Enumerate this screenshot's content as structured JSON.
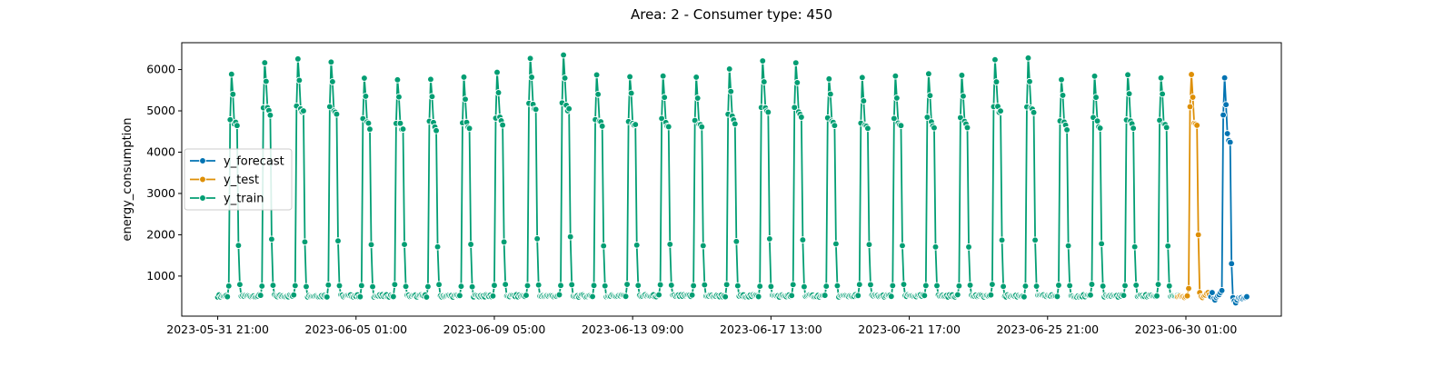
{
  "chart_data": {
    "type": "line",
    "title": "Area: 2 - Consumer type: 450",
    "xlabel": "",
    "ylabel": "energy_consumption",
    "x_tick_labels": [
      "2023-05-31 21:00",
      "2023-06-05 01:00",
      "2023-06-09 05:00",
      "2023-06-13 09:00",
      "2023-06-17 13:00",
      "2023-06-21 17:00",
      "2023-06-25 21:00",
      "2023-06-30 01:00"
    ],
    "y_ticks": [
      1000,
      2000,
      3000,
      4000,
      5000,
      6000
    ],
    "ylim": [
      30,
      6650
    ],
    "grid": false,
    "legend_position": "center-left",
    "series": [
      {
        "name": "y_forecast",
        "color": "#0173b2",
        "values_note": "hourly values 2023-06-30 19:00 to 2023-07-01 21:00",
        "start": "2023-06-30 19:00",
        "values": [
          500,
          600,
          450,
          420,
          480,
          520,
          550,
          600,
          650,
          4900,
          5800,
          5150,
          4450,
          4280,
          4240,
          1300,
          480,
          400,
          350,
          420,
          470,
          460,
          480,
          450,
          470,
          480,
          500
        ]
      },
      {
        "name": "y_test",
        "color": "#de8f05",
        "start": "2023-06-29 19:00",
        "values": [
          500,
          510,
          520,
          500,
          500,
          480,
          500,
          520,
          700,
          5100,
          5880,
          5330,
          4700,
          4680,
          4650,
          2000,
          600,
          500,
          480,
          520,
          540,
          580,
          600,
          550,
          500
        ]
      },
      {
        "name": "y_train",
        "color": "#029e73",
        "start": "2023-05-31 21:00",
        "daily_peaks": [
          5830,
          6200,
          6280,
          6230,
          5810,
          5760,
          5760,
          5760,
          5930,
          6320,
          6320,
          5870,
          5850,
          5810,
          5810,
          5960,
          6240,
          6160,
          5830,
          5760,
          5810,
          5850,
          5880,
          6250,
          6230,
          5790,
          5830,
          5830,
          5830
        ],
        "base_level": 520
      }
    ]
  }
}
